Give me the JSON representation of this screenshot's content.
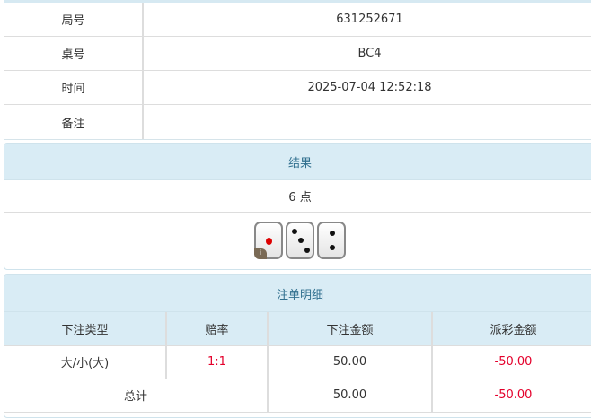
{
  "info": {
    "rows": [
      {
        "label": "局号",
        "value": "631252671"
      },
      {
        "label": "桌号",
        "value": "BC4"
      },
      {
        "label": "时间",
        "value": "2025-07-04 12:52:18"
      },
      {
        "label": "备注",
        "value": ""
      }
    ]
  },
  "result": {
    "title": "结果",
    "points": "6 点",
    "dice": [
      1,
      3,
      2
    ]
  },
  "bets": {
    "title": "注单明细",
    "headers": [
      "下注类型",
      "赔率",
      "下注金额",
      "派彩金额"
    ],
    "rows": [
      {
        "type": "大/小(大)",
        "odds": "1:1",
        "amount": "50.00",
        "payout": "-50.00"
      }
    ],
    "total": {
      "label": "总计",
      "amount": "50.00",
      "payout": "-50.00"
    }
  },
  "colors": {
    "header_bg": "#d9ecf5",
    "negative": "#e4002b"
  }
}
